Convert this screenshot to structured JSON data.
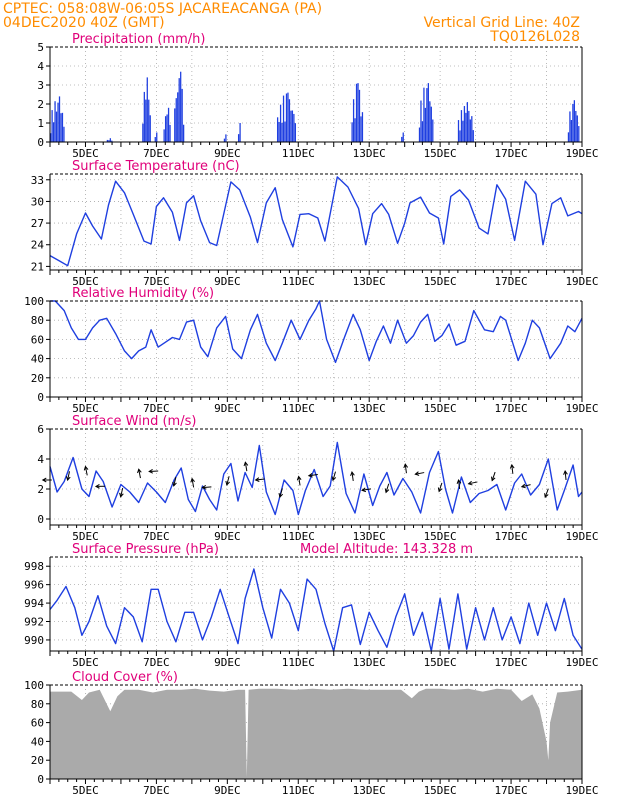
{
  "header": {
    "line1_left": "CPTEC:   058:08W-06:05S  JACAREACANGA (PA)",
    "line2_left": "04DEC2020 40Z (GMT)",
    "line2_right": "Vertical Grid Line: 40Z",
    "line3_right": "TQ0126L028"
  },
  "colors": {
    "header": "#ff8c00",
    "title": "#e0007a",
    "series": "#1f3fe0",
    "cloud": "#aaaaaa"
  },
  "chart_data": [
    {
      "id": "precipitation",
      "type": "bar",
      "title": "Precipitation (mm/h)",
      "x_start_day": 4,
      "x_end_day": 19,
      "x_tick_labels": [
        "5DEC",
        "7DEC",
        "9DEC",
        "11DEC",
        "13DEC",
        "15DEC",
        "17DEC",
        "19DEC"
      ],
      "ylim": [
        0,
        5
      ],
      "y_ticks": [
        0,
        1,
        2,
        3,
        4,
        5
      ],
      "bursts": [
        {
          "start": 4.0,
          "end": 4.4,
          "peak": 2.4
        },
        {
          "start": 5.6,
          "end": 5.75,
          "peak": 0.2
        },
        {
          "start": 6.6,
          "end": 6.85,
          "peak": 3.4
        },
        {
          "start": 6.95,
          "end": 7.05,
          "peak": 0.5
        },
        {
          "start": 7.2,
          "end": 7.4,
          "peak": 1.8
        },
        {
          "start": 7.5,
          "end": 7.8,
          "peak": 3.7
        },
        {
          "start": 8.9,
          "end": 9.0,
          "peak": 0.4
        },
        {
          "start": 9.3,
          "end": 9.4,
          "peak": 1.0
        },
        {
          "start": 10.4,
          "end": 10.95,
          "peak": 2.6
        },
        {
          "start": 12.5,
          "end": 12.85,
          "peak": 3.1
        },
        {
          "start": 13.9,
          "end": 14.0,
          "peak": 0.5
        },
        {
          "start": 14.4,
          "end": 14.8,
          "peak": 3.1
        },
        {
          "start": 15.5,
          "end": 15.95,
          "peak": 2.1
        },
        {
          "start": 18.6,
          "end": 18.95,
          "peak": 2.2
        }
      ]
    },
    {
      "id": "temperature",
      "type": "line",
      "title": "Surface Temperature (nC)",
      "x_start_day": 4,
      "x_end_day": 19,
      "x_tick_labels": [
        "5DEC",
        "7DEC",
        "9DEC",
        "11DEC",
        "13DEC",
        "15DEC",
        "17DEC",
        "19DEC"
      ],
      "ylim": [
        20.5,
        33.8
      ],
      "y_ticks": [
        21,
        24,
        27,
        30,
        33
      ],
      "x": [
        4.0,
        4.25,
        4.5,
        4.75,
        5.0,
        5.2,
        5.45,
        5.65,
        5.85,
        6.1,
        6.35,
        6.65,
        6.85,
        7.0,
        7.2,
        7.45,
        7.65,
        7.85,
        8.05,
        8.25,
        8.5,
        8.7,
        9.1,
        9.35,
        9.65,
        9.85,
        10.1,
        10.35,
        10.55,
        10.85,
        11.05,
        11.3,
        11.55,
        11.75,
        12.1,
        12.4,
        12.7,
        12.9,
        13.1,
        13.35,
        13.55,
        13.8,
        14.0,
        14.15,
        14.45,
        14.7,
        14.95,
        15.1,
        15.3,
        15.55,
        15.8,
        16.1,
        16.35,
        16.6,
        16.85,
        17.1,
        17.4,
        17.7,
        17.9,
        18.15,
        18.4,
        18.6,
        18.9,
        19.0
      ],
      "y": [
        22.5,
        21.8,
        21.1,
        25.5,
        28.4,
        26.6,
        24.8,
        29.5,
        32.8,
        31.2,
        28.2,
        24.5,
        24.1,
        29.3,
        30.5,
        28.5,
        24.6,
        29.8,
        30.8,
        27.3,
        24.3,
        23.9,
        32.7,
        31.6,
        27.8,
        24.3,
        29.8,
        31.9,
        27.5,
        23.7,
        28.2,
        28.3,
        27.7,
        24.5,
        33.4,
        32.0,
        29.0,
        24.0,
        28.3,
        29.7,
        28.2,
        24.2,
        27.0,
        29.8,
        30.6,
        28.4,
        27.7,
        24.1,
        30.7,
        31.6,
        30.2,
        26.3,
        25.5,
        32.3,
        30.3,
        24.6,
        32.8,
        31.0,
        24.0,
        29.7,
        30.5,
        28.0,
        28.6,
        28.3
      ]
    },
    {
      "id": "humidity",
      "type": "line",
      "title": "Relative Humidity (%)",
      "x_start_day": 4,
      "x_end_day": 19,
      "x_tick_labels": [
        "5DEC",
        "7DEC",
        "9DEC",
        "11DEC",
        "13DEC",
        "15DEC",
        "17DEC",
        "19DEC"
      ],
      "ylim": [
        0,
        100
      ],
      "y_ticks": [
        0,
        20,
        40,
        60,
        80,
        100
      ],
      "x": [
        4.0,
        4.15,
        4.4,
        4.6,
        4.8,
        5.0,
        5.2,
        5.4,
        5.6,
        5.85,
        6.1,
        6.3,
        6.5,
        6.7,
        6.85,
        7.05,
        7.25,
        7.45,
        7.65,
        7.85,
        8.05,
        8.25,
        8.45,
        8.7,
        8.95,
        9.15,
        9.4,
        9.65,
        9.85,
        10.1,
        10.35,
        10.55,
        10.8,
        11.05,
        11.3,
        11.5,
        11.6,
        11.8,
        12.05,
        12.3,
        12.55,
        12.75,
        13.0,
        13.2,
        13.4,
        13.6,
        13.8,
        14.05,
        14.25,
        14.45,
        14.65,
        14.85,
        15.05,
        15.25,
        15.45,
        15.7,
        15.95,
        16.25,
        16.5,
        16.7,
        16.85,
        17.05,
        17.2,
        17.4,
        17.6,
        17.8,
        18.1,
        18.4,
        18.6,
        18.8,
        19.0
      ],
      "y": [
        100,
        100,
        90,
        72,
        60,
        60,
        72,
        80,
        82,
        66,
        48,
        40,
        48,
        52,
        70,
        52,
        57,
        62,
        60,
        78,
        80,
        52,
        42,
        72,
        84,
        50,
        40,
        70,
        86,
        56,
        38,
        56,
        80,
        60,
        80,
        92,
        100,
        60,
        36,
        62,
        86,
        70,
        38,
        58,
        74,
        56,
        80,
        56,
        64,
        78,
        86,
        58,
        64,
        76,
        54,
        58,
        90,
        70,
        68,
        84,
        80,
        56,
        38,
        56,
        80,
        72,
        40,
        56,
        74,
        68,
        82
      ]
    },
    {
      "id": "wind",
      "type": "line",
      "title": "Surface Wind (m/s)",
      "x_start_day": 4,
      "x_end_day": 19,
      "x_tick_labels": [
        "5DEC",
        "7DEC",
        "9DEC",
        "11DEC",
        "13DEC",
        "15DEC",
        "17DEC",
        "19DEC"
      ],
      "ylim": [
        -0.4,
        6
      ],
      "y_ticks": [
        0,
        2,
        4,
        6
      ],
      "x": [
        4.0,
        4.2,
        4.4,
        4.65,
        4.9,
        5.1,
        5.3,
        5.5,
        5.75,
        6.0,
        6.25,
        6.5,
        6.75,
        7.0,
        7.25,
        7.5,
        7.7,
        7.9,
        8.1,
        8.3,
        8.5,
        8.7,
        8.9,
        9.1,
        9.3,
        9.5,
        9.7,
        9.9,
        10.1,
        10.35,
        10.6,
        10.85,
        11.0,
        11.2,
        11.45,
        11.7,
        11.9,
        12.1,
        12.35,
        12.6,
        12.85,
        13.1,
        13.3,
        13.5,
        13.7,
        13.95,
        14.2,
        14.45,
        14.7,
        14.95,
        15.15,
        15.35,
        15.6,
        15.85,
        16.1,
        16.35,
        16.6,
        16.85,
        17.1,
        17.3,
        17.55,
        17.8,
        18.05,
        18.3,
        18.5,
        18.75,
        18.9,
        19.0
      ],
      "y": [
        3.5,
        1.8,
        2.5,
        4.1,
        2.0,
        1.5,
        3.2,
        2.5,
        0.8,
        2.3,
        1.8,
        1.1,
        2.4,
        1.8,
        1.1,
        2.6,
        3.4,
        1.3,
        0.5,
        2.2,
        1.3,
        0.6,
        3.0,
        3.7,
        1.2,
        3.1,
        2.1,
        4.9,
        1.8,
        0.3,
        2.6,
        1.9,
        0.3,
        1.9,
        3.3,
        1.5,
        2.2,
        5.1,
        1.7,
        0.4,
        3.0,
        0.9,
        2.2,
        3.1,
        1.6,
        2.7,
        1.8,
        0.4,
        3.1,
        4.5,
        2.0,
        0.4,
        2.8,
        1.1,
        1.7,
        1.9,
        2.3,
        0.6,
        2.4,
        3.0,
        1.6,
        2.3,
        4.0,
        0.6,
        1.9,
        3.6,
        1.5,
        1.8
      ]
    },
    {
      "id": "pressure",
      "type": "line",
      "title": "Surface Pressure (hPa)",
      "annotation": "Model Altitude: 143.328 m",
      "x_start_day": 4,
      "x_end_day": 19,
      "x_tick_labels": [
        "5DEC",
        "7DEC",
        "9DEC",
        "11DEC",
        "13DEC",
        "15DEC",
        "17DEC",
        "19DEC"
      ],
      "ylim": [
        988.8,
        999
      ],
      "y_ticks": [
        990,
        992,
        994,
        996,
        998
      ],
      "x": [
        4.0,
        4.2,
        4.45,
        4.7,
        4.9,
        5.1,
        5.35,
        5.6,
        5.85,
        6.1,
        6.35,
        6.6,
        6.85,
        7.05,
        7.3,
        7.55,
        7.8,
        8.05,
        8.3,
        8.55,
        8.8,
        9.05,
        9.3,
        9.5,
        9.75,
        10.0,
        10.25,
        10.5,
        10.75,
        11.0,
        11.25,
        11.5,
        11.75,
        12.0,
        12.25,
        12.5,
        12.75,
        13.0,
        13.25,
        13.5,
        13.75,
        14.0,
        14.25,
        14.5,
        14.75,
        15.0,
        15.25,
        15.5,
        15.75,
        16.0,
        16.25,
        16.5,
        16.75,
        17.0,
        17.25,
        17.5,
        17.75,
        18.0,
        18.25,
        18.5,
        18.75,
        19.0
      ],
      "y": [
        993.3,
        994.3,
        995.8,
        993.5,
        990.5,
        992.0,
        994.8,
        991.5,
        989.6,
        993.5,
        992.5,
        989.8,
        995.5,
        995.5,
        992.0,
        989.8,
        993.0,
        993.0,
        990.0,
        992.5,
        995.5,
        992.5,
        989.6,
        994.5,
        997.7,
        993.5,
        990.2,
        995.5,
        994.0,
        991.0,
        996.6,
        995.5,
        991.8,
        988.8,
        993.5,
        993.8,
        989.5,
        993.0,
        991.0,
        989.2,
        992.5,
        995.0,
        990.5,
        993.0,
        988.8,
        994.5,
        989.0,
        995.0,
        989.0,
        993.5,
        990.0,
        993.5,
        990.0,
        992.5,
        989.6,
        994.0,
        990.5,
        994.0,
        991.0,
        994.5,
        990.5,
        989.0
      ]
    },
    {
      "id": "cloud",
      "type": "area",
      "title": "Cloud Cover (%)",
      "x_start_day": 4,
      "x_end_day": 19,
      "x_tick_labels": [
        "5DEC",
        "7DEC",
        "9DEC",
        "11DEC",
        "13DEC",
        "15DEC",
        "17DEC",
        "19DEC"
      ],
      "ylim": [
        0,
        100
      ],
      "y_ticks": [
        0,
        20,
        40,
        60,
        80,
        100
      ],
      "x": [
        4.0,
        4.3,
        4.6,
        4.9,
        5.1,
        5.4,
        5.7,
        5.9,
        6.1,
        6.5,
        6.9,
        7.3,
        7.7,
        8.1,
        8.5,
        8.9,
        9.3,
        9.5,
        9.55,
        9.6,
        9.9,
        10.4,
        10.9,
        11.4,
        11.9,
        12.4,
        12.9,
        13.4,
        13.9,
        14.2,
        14.4,
        14.6,
        15.0,
        15.4,
        15.8,
        16.2,
        16.6,
        17.0,
        17.3,
        17.6,
        17.8,
        18.0,
        18.05,
        18.1,
        18.3,
        18.6,
        19.0
      ],
      "y": [
        93,
        93,
        93,
        84,
        92,
        95,
        72,
        88,
        95,
        95,
        92,
        95,
        95,
        96,
        94,
        93,
        95,
        95,
        2,
        95,
        96,
        96,
        95,
        96,
        95,
        96,
        95,
        95,
        95,
        86,
        93,
        96,
        96,
        95,
        96,
        93,
        96,
        95,
        83,
        90,
        75,
        40,
        20,
        60,
        92,
        93,
        95
      ]
    }
  ]
}
